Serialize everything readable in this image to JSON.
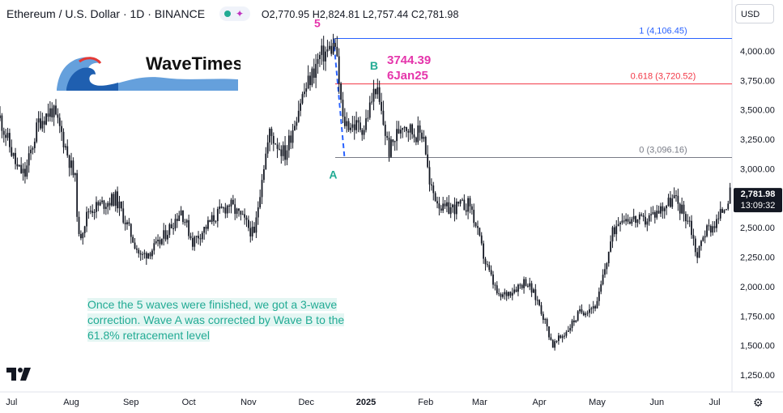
{
  "header": {
    "title": "Ethereum / U.S. Dollar · 1D · BINANCE",
    "ohlc": "O2,770.95 H2,824.81 L2,757.44 C2,781.98"
  },
  "currency_button": "USD",
  "colors": {
    "up": "#131722",
    "accent_teal": "#22ab94",
    "accent_magenta": "#e535ab",
    "fib_blue": "#2962ff",
    "fib_red": "#f23645",
    "fib_gray": "#787b86"
  },
  "logo": {
    "text": "WaveTimes"
  },
  "price_badge": {
    "price": "2,781.98",
    "countdown": "13:09:32"
  },
  "annotation": "Once the 5 waves were finished, we got a 3-wave correction. Wave A was corrected by Wave B to the 61.8% retracement level",
  "wave_labels": {
    "five": "5",
    "a": "A",
    "b": "B"
  },
  "b_callout": {
    "price": "3744.39",
    "date": "6Jan25"
  },
  "chart_data": {
    "type": "candlestick",
    "title": "Ethereum / U.S. Dollar · 1D · BINANCE",
    "y_axis": {
      "ticks": [
        1250,
        1500,
        1750,
        2000,
        2250,
        2500,
        2750,
        3000,
        3250,
        3500,
        3750,
        4000
      ],
      "tick_labels": [
        "1,250.00",
        "1,500.00",
        "1,750.00",
        "2,000.00",
        "2,250.00",
        "2,500.00",
        "2,750.00",
        "3,000.00",
        "3,250.00",
        "3,500.00",
        "3,750.00",
        "4,000.00"
      ],
      "range": [
        1150,
        4250
      ]
    },
    "x_axis": {
      "range": [
        "2024-06-25",
        "2025-07-10"
      ],
      "ticks": [
        {
          "date": "2024-07-01",
          "label": "Jul"
        },
        {
          "date": "2024-08-01",
          "label": "Aug"
        },
        {
          "date": "2024-09-01",
          "label": "Sep"
        },
        {
          "date": "2024-10-01",
          "label": "Oct"
        },
        {
          "date": "2024-11-01",
          "label": "Nov"
        },
        {
          "date": "2024-12-01",
          "label": "Dec"
        },
        {
          "date": "2025-01-01",
          "label": "2025"
        },
        {
          "date": "2025-02-01",
          "label": "Feb"
        },
        {
          "date": "2025-03-01",
          "label": "Mar"
        },
        {
          "date": "2025-04-01",
          "label": "Apr"
        },
        {
          "date": "2025-05-01",
          "label": "May"
        },
        {
          "date": "2025-06-01",
          "label": "Jun"
        },
        {
          "date": "2025-07-01",
          "label": "Jul"
        }
      ]
    },
    "price_path": [
      {
        "date": "2024-06-25",
        "close": 3430
      },
      {
        "date": "2024-07-04",
        "close": 3000
      },
      {
        "date": "2024-07-08",
        "close": 2950
      },
      {
        "date": "2024-07-15",
        "close": 3400
      },
      {
        "date": "2024-07-22",
        "close": 3500
      },
      {
        "date": "2024-07-27",
        "close": 3300
      },
      {
        "date": "2024-08-03",
        "close": 2900
      },
      {
        "date": "2024-08-05",
        "close": 2400
      },
      {
        "date": "2024-08-10",
        "close": 2650
      },
      {
        "date": "2024-08-24",
        "close": 2750
      },
      {
        "date": "2024-09-06",
        "close": 2250
      },
      {
        "date": "2024-09-15",
        "close": 2350
      },
      {
        "date": "2024-09-27",
        "close": 2650
      },
      {
        "date": "2024-10-03",
        "close": 2380
      },
      {
        "date": "2024-10-15",
        "close": 2600
      },
      {
        "date": "2024-10-22",
        "close": 2700
      },
      {
        "date": "2024-10-30",
        "close": 2550
      },
      {
        "date": "2024-11-04",
        "close": 2430
      },
      {
        "date": "2024-11-08",
        "close": 2950
      },
      {
        "date": "2024-11-12",
        "close": 3300
      },
      {
        "date": "2024-11-20",
        "close": 3120
      },
      {
        "date": "2024-11-28",
        "close": 3580
      },
      {
        "date": "2024-12-08",
        "close": 3950
      },
      {
        "date": "2024-12-16",
        "close": 4050
      },
      {
        "date": "2024-12-20",
        "close": 3400
      },
      {
        "date": "2024-12-25",
        "close": 3370
      },
      {
        "date": "2024-12-31",
        "close": 3350
      },
      {
        "date": "2025-01-06",
        "close": 3700
      },
      {
        "date": "2025-01-13",
        "close": 3150
      },
      {
        "date": "2025-01-20",
        "close": 3400
      },
      {
        "date": "2025-01-26",
        "close": 3300
      },
      {
        "date": "2025-01-31",
        "close": 3300
      },
      {
        "date": "2025-02-03",
        "close": 2850
      },
      {
        "date": "2025-02-10",
        "close": 2650
      },
      {
        "date": "2025-02-24",
        "close": 2700
      },
      {
        "date": "2025-03-04",
        "close": 2200
      },
      {
        "date": "2025-03-11",
        "close": 1900
      },
      {
        "date": "2025-03-25",
        "close": 2050
      },
      {
        "date": "2025-04-01",
        "close": 1850
      },
      {
        "date": "2025-04-08",
        "close": 1500
      },
      {
        "date": "2025-04-14",
        "close": 1600
      },
      {
        "date": "2025-04-22",
        "close": 1780
      },
      {
        "date": "2025-05-01",
        "close": 1850
      },
      {
        "date": "2025-05-09",
        "close": 2450
      },
      {
        "date": "2025-05-13",
        "close": 2600
      },
      {
        "date": "2025-05-25",
        "close": 2550
      },
      {
        "date": "2025-06-10",
        "close": 2750
      },
      {
        "date": "2025-06-18",
        "close": 2550
      },
      {
        "date": "2025-06-22",
        "close": 2250
      },
      {
        "date": "2025-06-25",
        "close": 2450
      },
      {
        "date": "2025-07-02",
        "close": 2550
      },
      {
        "date": "2025-07-09",
        "close": 2781.98
      }
    ],
    "fib_levels": [
      {
        "ratio": "1",
        "price": 4106.45,
        "label": "1 (4,106.45)",
        "color": "#2962ff"
      },
      {
        "ratio": "0.618",
        "price": 3720.52,
        "label": "0.618 (3,720.52)",
        "color": "#f23645"
      },
      {
        "ratio": "0",
        "price": 3096.16,
        "label": "0 (3,096.16)",
        "color": "#787b86"
      }
    ],
    "fib_start_date": "2024-12-16",
    "wave_points": [
      {
        "label": "5",
        "date": "2024-12-16",
        "price": 4106.45
      },
      {
        "label": "A",
        "date": "2024-12-20",
        "price": 3096.16
      },
      {
        "label": "B",
        "date": "2025-01-06",
        "price": 3744.39
      }
    ],
    "last_price": 2781.98
  }
}
